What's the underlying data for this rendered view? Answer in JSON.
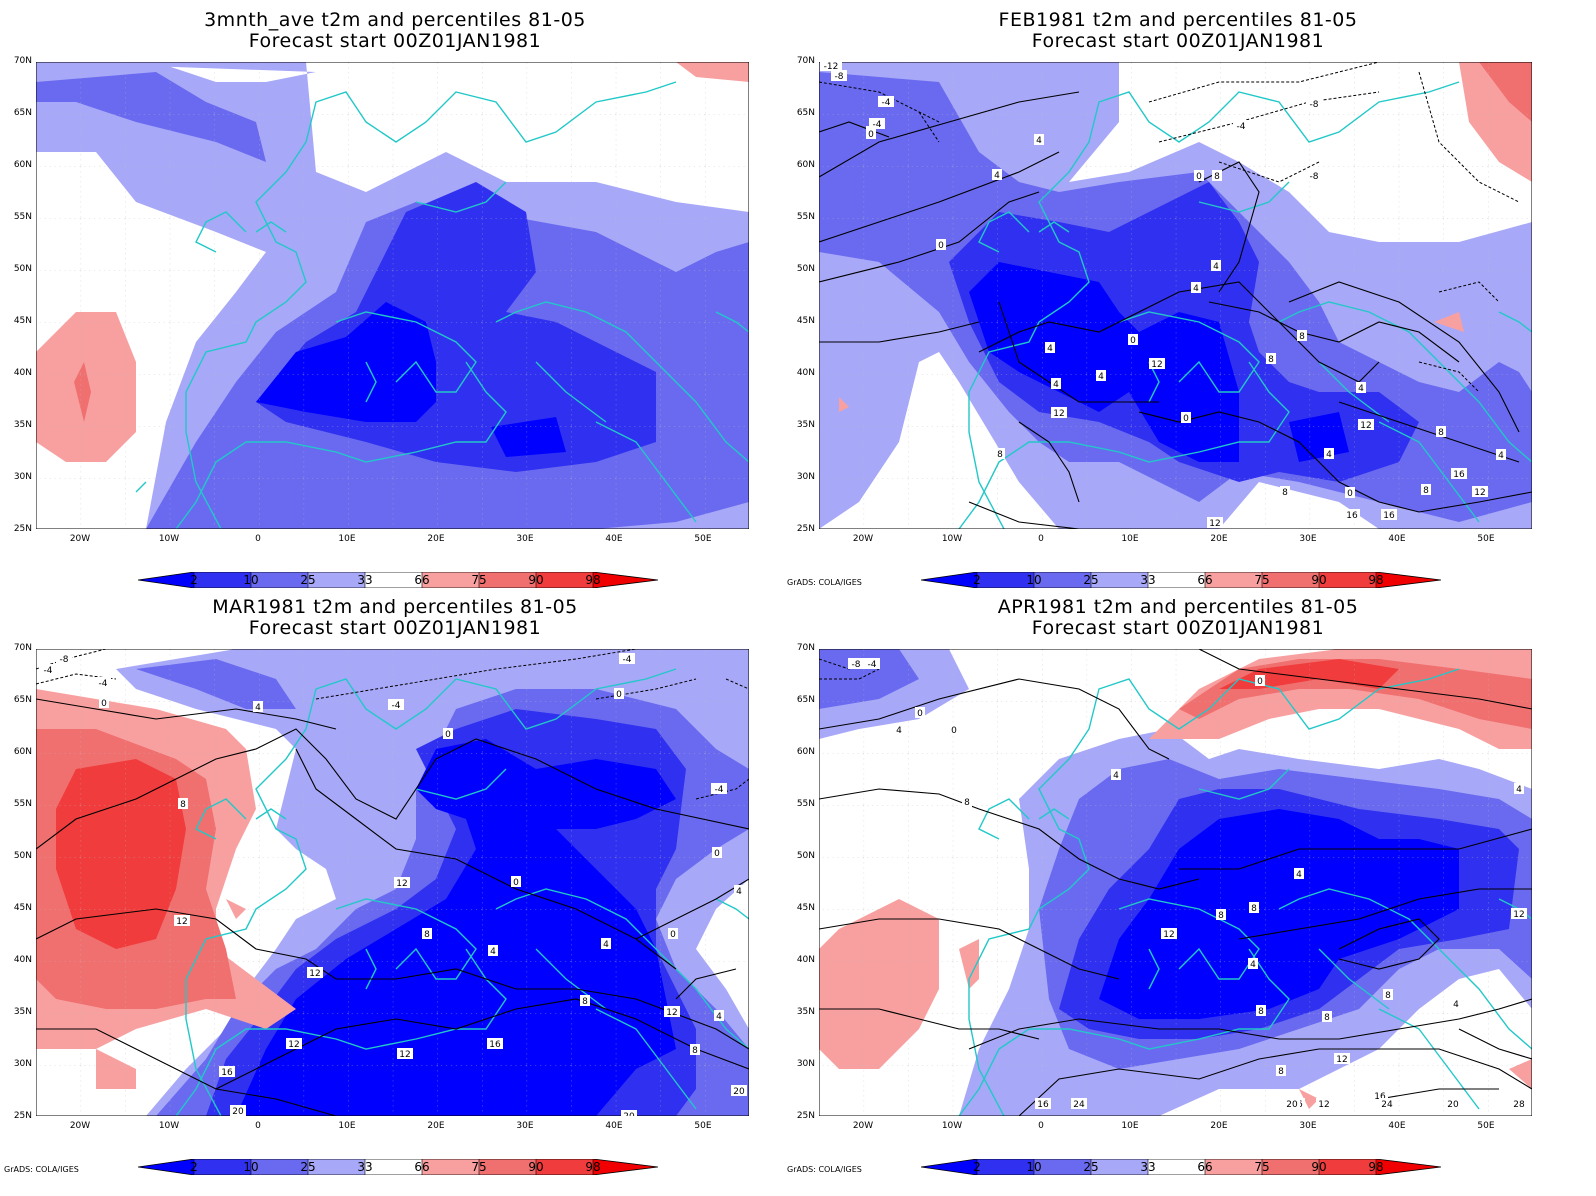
{
  "panels": [
    {
      "title1": "3mnth_ave t2m and percentiles 81-05",
      "title2": "Forecast start 00Z01JAN1981",
      "credit": ""
    },
    {
      "title1": "FEB1981 t2m and percentiles 81-05",
      "title2": "Forecast start 00Z01JAN1981",
      "credit": "GrADS: COLA/IGES"
    },
    {
      "title1": "MAR1981 t2m and percentiles 81-05",
      "title2": "Forecast start 00Z01JAN1981",
      "credit": "GrADS: COLA/IGES"
    },
    {
      "title1": "APR1981 t2m and percentiles 81-05",
      "title2": "Forecast start 00Z01JAN1981",
      "credit": "GrADS: COLA/IGES"
    }
  ],
  "axes": {
    "lat_labels": [
      "70N",
      "65N",
      "60N",
      "55N",
      "50N",
      "45N",
      "40N",
      "35N",
      "30N",
      "25N"
    ],
    "lon_labels": [
      "20W",
      "10W",
      "0",
      "10E",
      "20E",
      "30E",
      "40E",
      "50E"
    ]
  },
  "colorbar": {
    "labels": [
      "2",
      "10",
      "25",
      "33",
      "66",
      "75",
      "90",
      "98"
    ],
    "colors": [
      "#0000ff",
      "#3030f0",
      "#6a6af0",
      "#a8a8f8",
      "#ffffff",
      "#f8a0a0",
      "#f07070",
      "#f03c3c",
      "#f00000"
    ]
  },
  "coastline_color": "#22c8c8",
  "contour_color": "#000000",
  "contour_labels": {
    "feb": [
      "-12",
      "-8",
      "-4",
      "-4",
      "0",
      "0",
      "4",
      "4",
      "4",
      "-8",
      "-4",
      "-8",
      "0",
      "8",
      "0",
      "4",
      "4",
      "0",
      "4",
      "0",
      "4",
      "8",
      "12",
      "8",
      "12",
      "4",
      "8",
      "8",
      "12",
      "4",
      "4",
      "0",
      "8",
      "12",
      "16",
      "16",
      "12",
      "8",
      "16"
    ],
    "mar": [
      "-8",
      "-4",
      "-4",
      "0",
      "4",
      "-4",
      "-4",
      "0",
      "0",
      "-4",
      "8",
      "0",
      "12",
      "0",
      "0",
      "4",
      "8",
      "12",
      "4",
      "4",
      "0",
      "8",
      "12",
      "4",
      "12",
      "12",
      "12",
      "16",
      "8",
      "16",
      "20",
      "20",
      "20"
    ],
    "apr": [
      "-4",
      "-8",
      "0",
      "4",
      "0",
      "0",
      "4",
      "8",
      "4",
      "4",
      "8",
      "8",
      "12",
      "4",
      "8",
      "8",
      "8",
      "12",
      "4",
      "12",
      "12",
      "8",
      "20",
      "16",
      "16",
      "12",
      "16",
      "20",
      "24",
      "24",
      "24",
      "28"
    ]
  }
}
